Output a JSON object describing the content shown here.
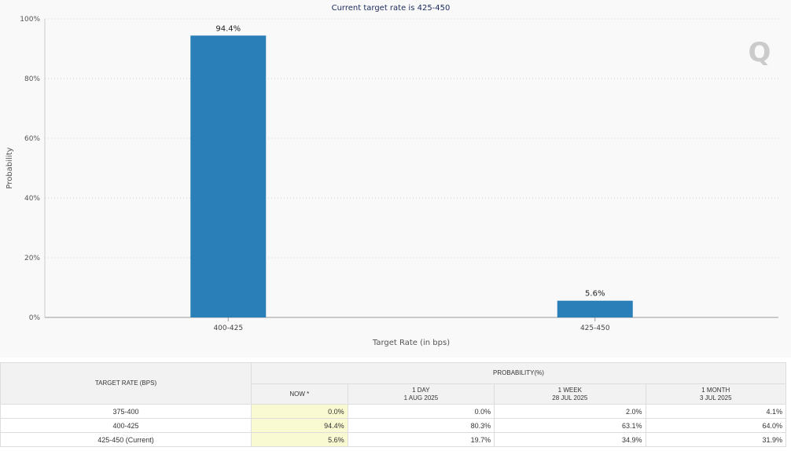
{
  "chart_data": {
    "type": "bar",
    "title": "Current target rate is 425-450",
    "xlabel": "Target Rate (in bps)",
    "ylabel": "Probability",
    "categories": [
      "400-425",
      "425-450"
    ],
    "values": [
      94.4,
      5.6
    ],
    "data_labels": [
      "94.4%",
      "5.6%"
    ],
    "ylim": [
      0,
      100
    ],
    "yticks": [
      "0%",
      "20%",
      "40%",
      "60%",
      "80%",
      "100%"
    ],
    "grid": true,
    "color": "#2b7fb8"
  },
  "table": {
    "rate_header": "TARGET RATE (BPS)",
    "prob_header": "PROBABILITY(%)",
    "columns": [
      {
        "line1": "NOW *",
        "line2": ""
      },
      {
        "line1": "1 DAY",
        "line2": "1 AUG 2025"
      },
      {
        "line1": "1 WEEK",
        "line2": "28 JUL 2025"
      },
      {
        "line1": "1 MONTH",
        "line2": "3 JUL 2025"
      }
    ],
    "rows": [
      {
        "rate": "375-400",
        "values": [
          "0.0%",
          "0.0%",
          "2.0%",
          "4.1%"
        ]
      },
      {
        "rate": "400-425",
        "values": [
          "94.4%",
          "80.3%",
          "63.1%",
          "64.0%"
        ]
      },
      {
        "rate": "425-450 (Current)",
        "values": [
          "5.6%",
          "19.7%",
          "34.9%",
          "31.9%"
        ]
      }
    ]
  }
}
